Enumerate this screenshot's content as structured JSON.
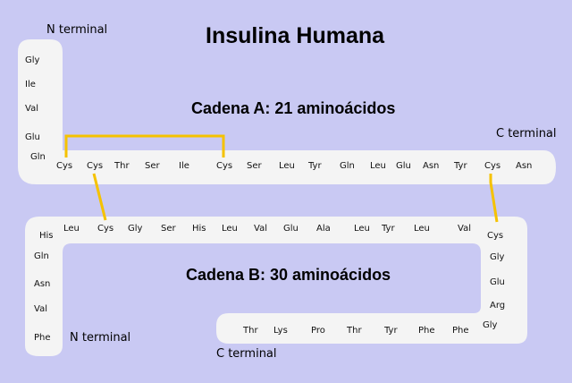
{
  "title": "Insulina Humana",
  "chain_a": {
    "title": "Cadena A: 21 aminoácidos",
    "n_terminal": "N terminal",
    "c_terminal": "C terminal",
    "residues": [
      "Gly",
      "Ile",
      "Val",
      "Glu",
      "Gln",
      "Cys",
      "Cys",
      "Thr",
      "Ser",
      "Ile",
      "Cys",
      "Ser",
      "Leu",
      "Tyr",
      "Gln",
      "Leu",
      "Glu",
      "Asn",
      "Tyr",
      "Cys",
      "Asn"
    ]
  },
  "chain_b": {
    "title": "Cadena B: 30 aminoácidos",
    "n_terminal": "N terminal",
    "c_terminal": "C terminal",
    "residues": [
      "Phe",
      "Val",
      "Asn",
      "Gln",
      "His",
      "Leu",
      "Cys",
      "Gly",
      "Ser",
      "His",
      "Leu",
      "Val",
      "Glu",
      "Ala",
      "Leu",
      "Tyr",
      "Leu",
      "Val",
      "Cys",
      "Gly",
      "Glu",
      "Arg",
      "Gly",
      "Phe",
      "Phe",
      "Tyr",
      "Thr",
      "Pro",
      "Lys",
      "Thr"
    ]
  },
  "colors": {
    "background": "#c9c9f3",
    "chain_band": "#f4f4f4",
    "disulfide_bond": "#f5c200"
  }
}
